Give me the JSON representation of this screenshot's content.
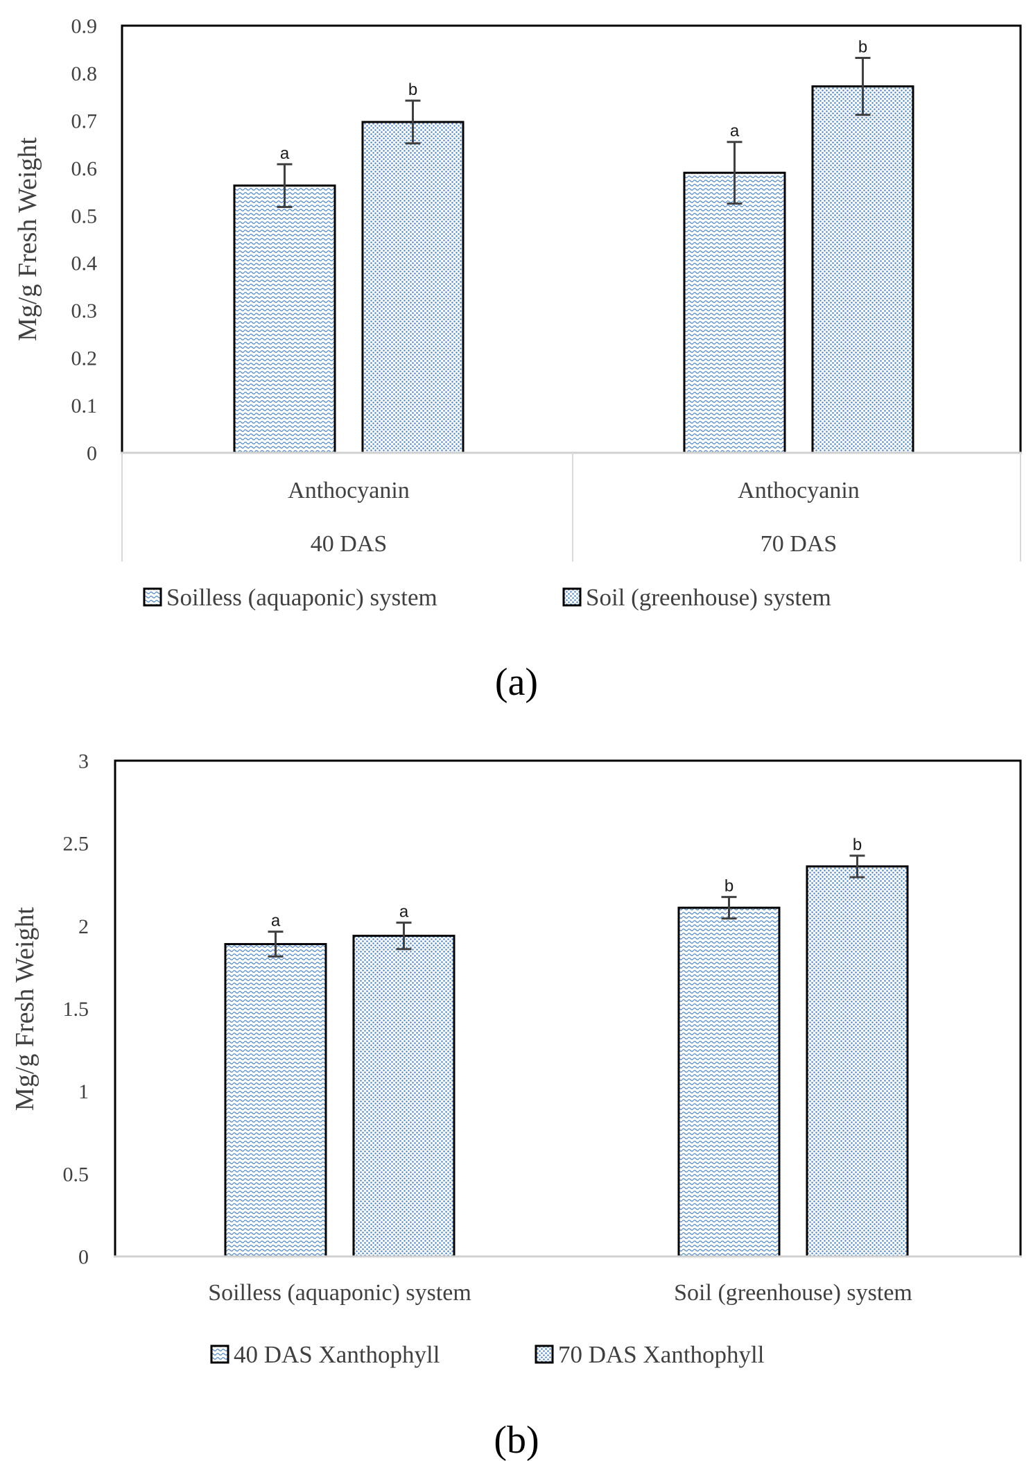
{
  "colors": {
    "pattern_blue": "#4a86c8",
    "axis_text": "#404040",
    "frame": "#000000",
    "gridline": "#d9d9d9",
    "error_bar": "#404040"
  },
  "chart_data": [
    {
      "panel_label": "(a)",
      "type": "bar",
      "xlabel": "",
      "ylabel": "Mg/g Fresh Weight",
      "ylim": [
        0,
        0.9
      ],
      "yticks": [
        "0",
        "0.1",
        "0.2",
        "0.3",
        "0.4",
        "0.5",
        "0.6",
        "0.7",
        "0.8",
        "0.9"
      ],
      "categories": [
        [
          "Anthocyanin",
          "40 DAS"
        ],
        [
          "Anthocyanin",
          "70 DAS"
        ]
      ],
      "series": [
        {
          "name": "Soilless (aquaponic) system",
          "pattern": "wave",
          "values": [
            0.563,
            0.59
          ],
          "errors": [
            0.045,
            0.065
          ],
          "letters": [
            "a",
            "a"
          ]
        },
        {
          "name": "Soil (greenhouse) system",
          "pattern": "dots",
          "values": [
            0.697,
            0.772
          ],
          "errors": [
            0.045,
            0.06
          ],
          "letters": [
            "b",
            "b"
          ]
        }
      ],
      "legend": "bottom"
    },
    {
      "panel_label": "(b)",
      "type": "bar",
      "xlabel": "",
      "ylabel": "Mg/g Fresh Weight",
      "ylim": [
        0,
        3
      ],
      "yticks": [
        "0",
        "0.5",
        "1",
        "1.5",
        "2",
        "2.5",
        "3"
      ],
      "categories": [
        [
          "Soilless (aquaponic) system"
        ],
        [
          "Soil (greenhouse) system"
        ]
      ],
      "series": [
        {
          "name": "40 DAS Xanthophyll",
          "pattern": "wave",
          "values": [
            1.89,
            2.11
          ],
          "errors": [
            0.075,
            0.065
          ],
          "letters": [
            "a",
            "b"
          ]
        },
        {
          "name": "70 DAS Xanthophyll",
          "pattern": "dots",
          "values": [
            1.94,
            2.36
          ],
          "errors": [
            0.08,
            0.065
          ],
          "letters": [
            "a",
            "b"
          ]
        }
      ],
      "legend": "bottom"
    }
  ]
}
